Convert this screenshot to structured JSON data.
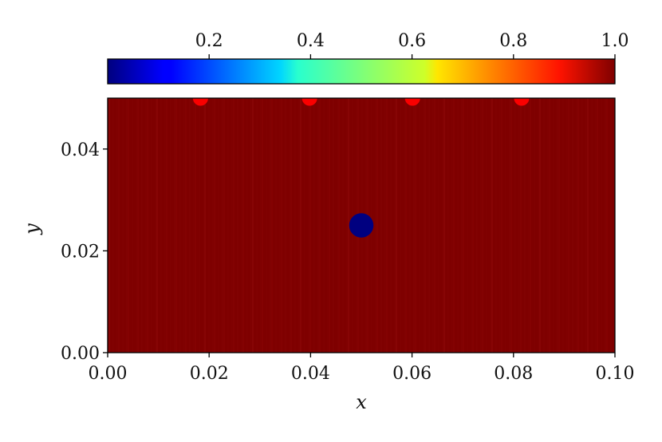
{
  "chart_data": {
    "type": "heatmap",
    "title": "",
    "xlabel": "x",
    "ylabel": "y",
    "xlim": [
      0.0,
      0.1
    ],
    "ylim": [
      0.0,
      0.05
    ],
    "x_ticks": [
      0.0,
      0.02,
      0.04,
      0.06,
      0.08,
      0.1
    ],
    "x_tick_labels": [
      "0.00",
      "0.02",
      "0.04",
      "0.06",
      "0.08",
      "0.10"
    ],
    "y_ticks": [
      0.0,
      0.02,
      0.04
    ],
    "y_tick_labels": [
      "0.00",
      "0.02",
      "0.04"
    ],
    "colorbar": {
      "colormap": "jet",
      "orientation": "horizontal",
      "location": "top",
      "range": [
        0.0,
        1.0
      ],
      "ticks": [
        0.2,
        0.4,
        0.6,
        0.8,
        1.0
      ],
      "tick_labels": [
        "0.2",
        "0.4",
        "0.6",
        "0.8",
        "1.0"
      ]
    },
    "background_value": 1.0,
    "grid": false,
    "features": [
      {
        "kind": "disc",
        "x": 0.05,
        "y": 0.025,
        "radius": 0.0024,
        "value": 0.0
      },
      {
        "kind": "half-disc-top-edge",
        "x": 0.0183,
        "y": 0.05,
        "radius": 0.0015,
        "value": 0.88
      },
      {
        "kind": "half-disc-top-edge",
        "x": 0.0398,
        "y": 0.05,
        "radius": 0.0015,
        "value": 0.88
      },
      {
        "kind": "half-disc-top-edge",
        "x": 0.0601,
        "y": 0.05,
        "radius": 0.0015,
        "value": 0.88
      },
      {
        "kind": "half-disc-top-edge",
        "x": 0.0816,
        "y": 0.05,
        "radius": 0.0015,
        "value": 0.88
      }
    ]
  }
}
